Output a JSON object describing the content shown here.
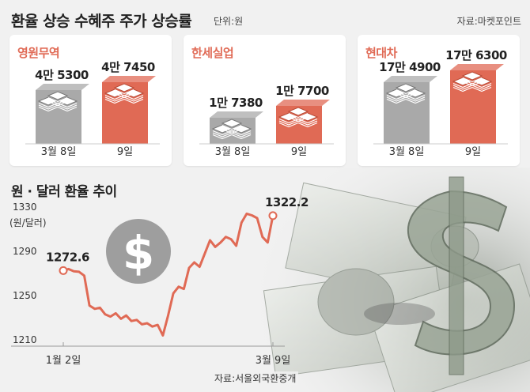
{
  "header": {
    "title": "환율 상승 수혜주 주가 상승률",
    "unit": "단위:원",
    "source": "자료:마켓포인트"
  },
  "chart_data": [
    {
      "type": "bar",
      "title": "영원무역",
      "categories": [
        "3월 8일",
        "9일"
      ],
      "values": [
        45300,
        47450
      ],
      "labels": [
        "4만 5300",
        "4만 7450"
      ],
      "colors": [
        "#a9a9a9",
        "#e06a55"
      ]
    },
    {
      "type": "bar",
      "title": "한세실업",
      "categories": [
        "3월 8일",
        "9일"
      ],
      "values": [
        17380,
        17700
      ],
      "labels": [
        "1만 7380",
        "1만 7700"
      ],
      "colors": [
        "#a9a9a9",
        "#e06a55"
      ]
    },
    {
      "type": "bar",
      "title": "현대차",
      "categories": [
        "3월 8일",
        "9일"
      ],
      "values": [
        174900,
        176300
      ],
      "labels": [
        "17만 4900",
        "17만 6300"
      ],
      "colors": [
        "#a9a9a9",
        "#e06a55"
      ]
    },
    {
      "type": "line",
      "title": "원 · 달러 환율 추이",
      "ylabel": "(원/달러)",
      "ylim": [
        1210,
        1330
      ],
      "yticks": [
        1330,
        1290,
        1250,
        1210
      ],
      "xticks": [
        "1월 2일",
        "3월 9일"
      ],
      "start_label": "1272.6",
      "end_label": "1322.2",
      "series": [
        {
          "color": "#e06a55",
          "values": [
            1272.6,
            1274.0,
            1272.0,
            1271.5,
            1268.0,
            1241.0,
            1238.0,
            1239.0,
            1233.0,
            1231.0,
            1234.0,
            1229.0,
            1232.0,
            1227.0,
            1228.0,
            1224.0,
            1225.0,
            1222.0,
            1223.5,
            1214.0,
            1232.0,
            1252.0,
            1258.0,
            1256.0,
            1275.0,
            1280.0,
            1276.0,
            1288.0,
            1300.0,
            1294.0,
            1298.0,
            1303.0,
            1301.0,
            1295.0,
            1316.0,
            1324.0,
            1322.5,
            1320.0,
            1303.0,
            1298.0,
            1322.2
          ]
        }
      ],
      "source": "자료:서울외국환중개"
    }
  ],
  "palette": {
    "accent": "#e06a55",
    "grey_bar": "#a9a9a9",
    "coin": "#9e9e9e"
  },
  "icons": [
    "money-bundle-icon",
    "dollar-coin-icon",
    "dollar-bills-photo"
  ]
}
